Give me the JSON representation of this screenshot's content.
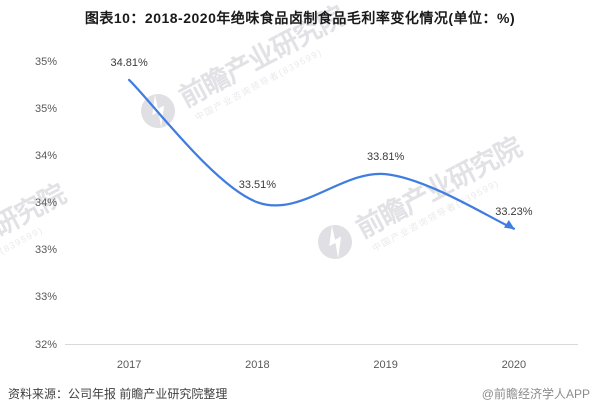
{
  "title": "图表10：2018-2020年绝味食品卤制食品毛利率变化情况(单位：%)",
  "chart_data": {
    "type": "line",
    "title": "2018-2020年绝味食品卤制食品毛利率变化情况",
    "unit": "%",
    "categories": [
      "2017",
      "2018",
      "2019",
      "2020"
    ],
    "series": [
      {
        "name": "绝味食品卤制食品毛利率",
        "values": [
          34.81,
          33.51,
          33.81,
          33.23
        ]
      }
    ],
    "data_labels": [
      "34.81%",
      "33.51%",
      "33.81%",
      "33.23%"
    ],
    "y_axis": {
      "min": 32,
      "max": 35,
      "tick_labels": [
        "35%",
        "35%",
        "34%",
        "34%",
        "33%",
        "33%",
        "32%"
      ]
    },
    "grid": false,
    "legend": "none",
    "line_color": "#3f7de0",
    "line_style": "smooth-with-arrow-end"
  },
  "footer": {
    "source": "资料来源：公司年报 前瞻产业研究院整理",
    "credit": "@前瞻经济学人APP"
  },
  "watermark": {
    "brand": "前瞻产业研究院",
    "subtext": "中国产业咨询领导者(839599)",
    "logo": "qianzhan-circle-logo",
    "color": "#e4e4e7"
  }
}
